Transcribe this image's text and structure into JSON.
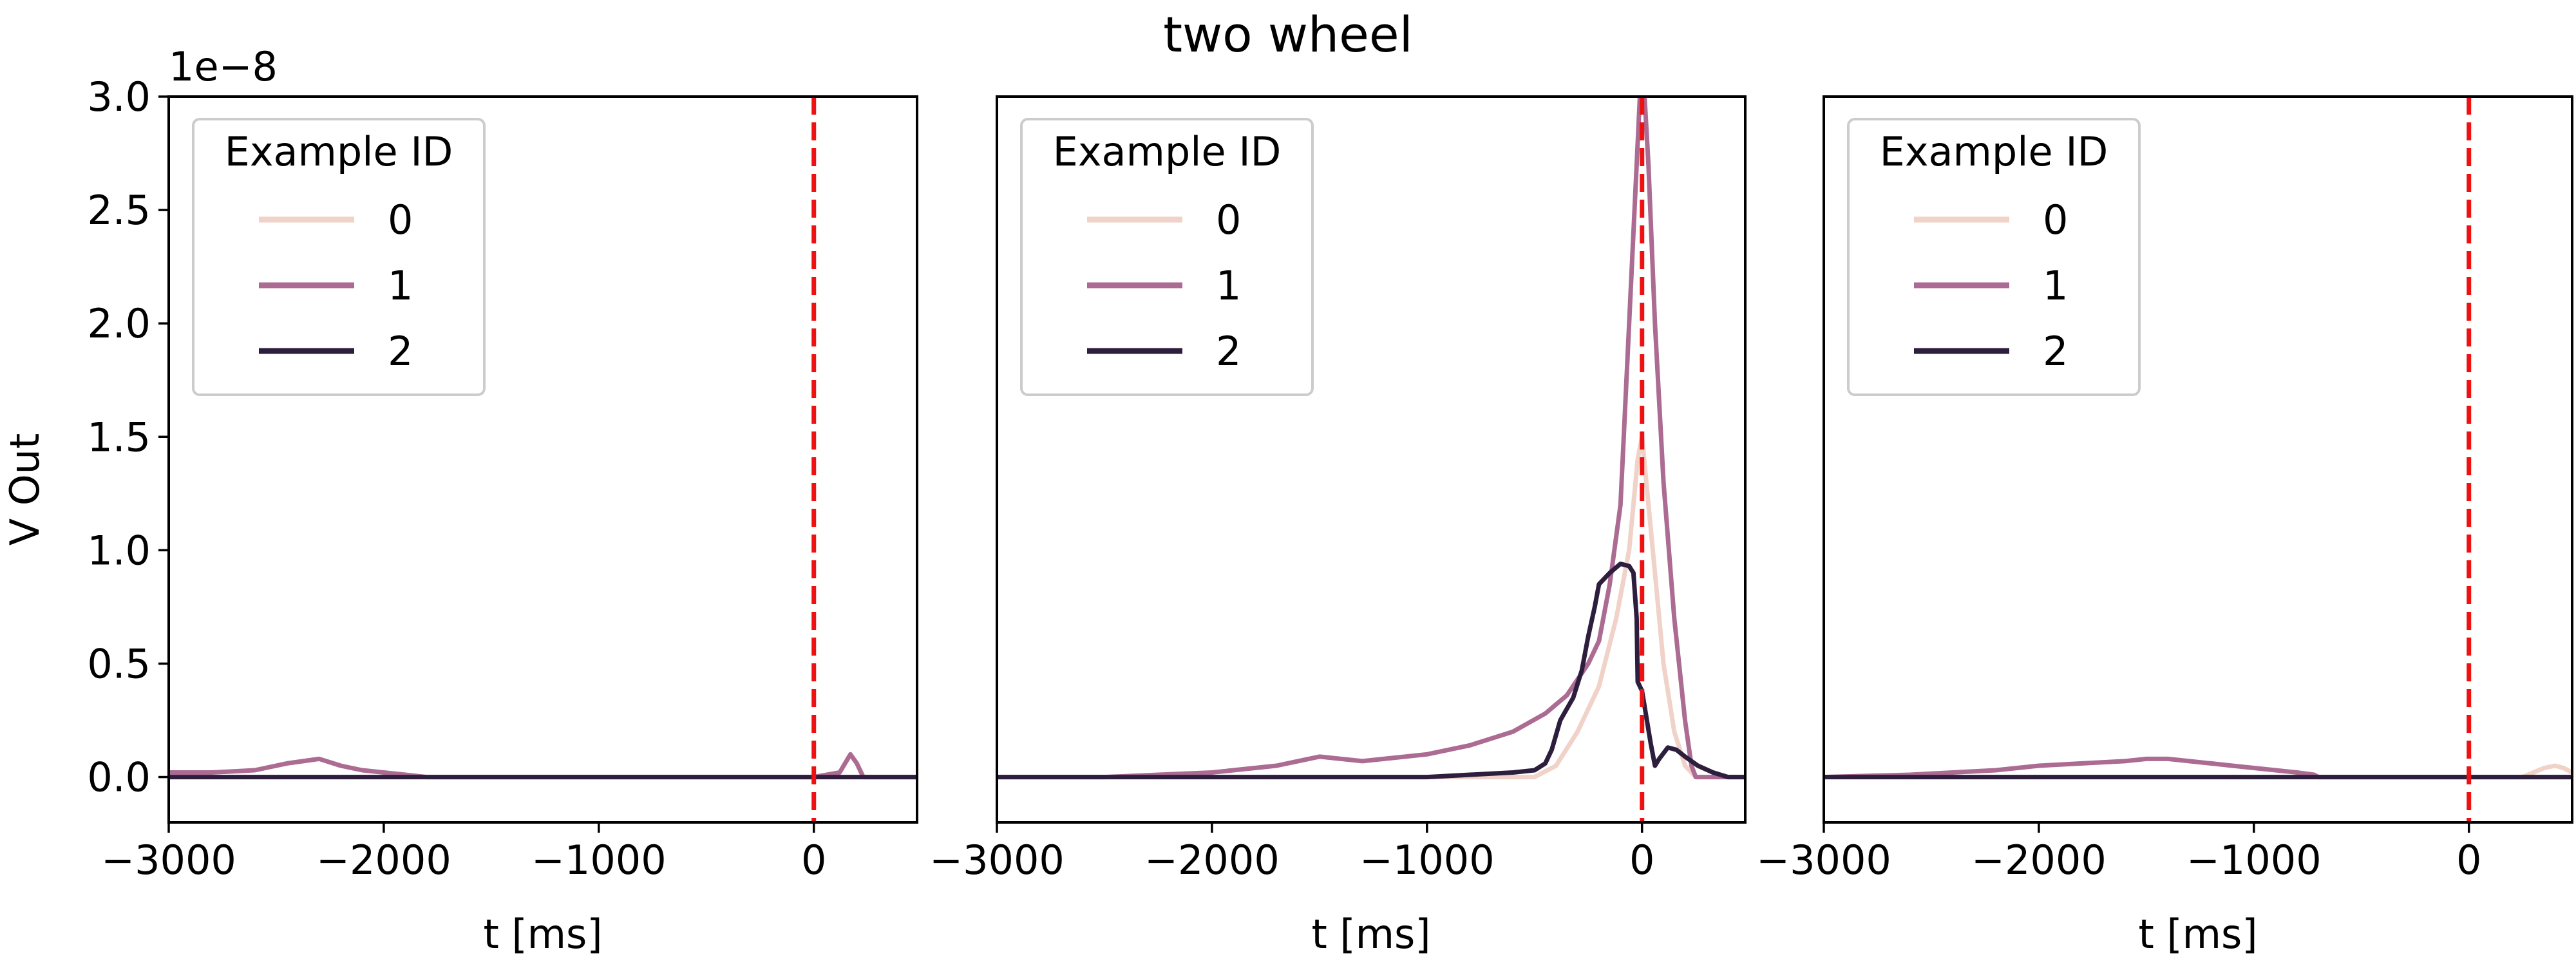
{
  "title": "two wheel",
  "y_label": "V Out",
  "y_offset_label": "1e−8",
  "x_label": "t [ms]",
  "x_ticks": [
    {
      "v": -3000,
      "label": "−3000"
    },
    {
      "v": -2000,
      "label": "−2000"
    },
    {
      "v": -1000,
      "label": "−1000"
    },
    {
      "v": 0,
      "label": "0"
    }
  ],
  "y_ticks": [
    {
      "v": 0.0,
      "label": "0.0"
    },
    {
      "v": 0.5,
      "label": "0.5"
    },
    {
      "v": 1.0,
      "label": "1.0"
    },
    {
      "v": 1.5,
      "label": "1.5"
    },
    {
      "v": 2.0,
      "label": "2.0"
    },
    {
      "v": 2.5,
      "label": "2.5"
    },
    {
      "v": 3.0,
      "label": "3.0"
    }
  ],
  "legend_title": "Example ID",
  "colors": {
    "0": "#f0d2c8",
    "1": "#ac6b92",
    "2": "#2d1e3e",
    "marker": "#ee1111"
  },
  "chart_data": [
    {
      "type": "line",
      "xlabel": "t [ms]",
      "ylabel": "V Out",
      "y_scale": "1e-8",
      "xlim": [
        -3000,
        480
      ],
      "ylim": [
        -0.2,
        3.0
      ],
      "vertical_marker_x": 0,
      "legend": {
        "title": "Example ID",
        "entries": [
          "0",
          "1",
          "2"
        ],
        "placement": "upper-left"
      },
      "series": [
        {
          "name": "0",
          "x": [
            -3000,
            480
          ],
          "y": [
            0.0,
            0.0
          ]
        },
        {
          "name": "1",
          "x": [
            -3000,
            -2800,
            -2600,
            -2450,
            -2300,
            -2200,
            -2100,
            -2000,
            -1900,
            -1800,
            -1500,
            -1000,
            0,
            120,
            170,
            200,
            230,
            480
          ],
          "y": [
            0.02,
            0.02,
            0.03,
            0.06,
            0.08,
            0.05,
            0.03,
            0.02,
            0.01,
            0.0,
            0.0,
            0.0,
            0.0,
            0.02,
            0.1,
            0.06,
            0.0,
            0.0
          ]
        },
        {
          "name": "2",
          "x": [
            -3000,
            480
          ],
          "y": [
            0.0,
            0.0
          ]
        }
      ]
    },
    {
      "type": "line",
      "xlabel": "t [ms]",
      "ylim": [
        -0.2,
        3.0
      ],
      "xlim": [
        -3000,
        480
      ],
      "vertical_marker_x": 0,
      "legend": {
        "title": "Example ID",
        "entries": [
          "0",
          "1",
          "2"
        ],
        "placement": "upper-left"
      },
      "series": [
        {
          "name": "0",
          "x": [
            -3000,
            -500,
            -400,
            -300,
            -200,
            -120,
            -60,
            -20,
            0,
            60,
            100,
            150,
            200,
            250,
            480
          ],
          "y": [
            0.0,
            0.0,
            0.05,
            0.2,
            0.4,
            0.7,
            1.0,
            1.4,
            1.5,
            0.9,
            0.5,
            0.2,
            0.05,
            0.0,
            0.0
          ]
        },
        {
          "name": "1",
          "x": [
            -3000,
            -2500,
            -2000,
            -1700,
            -1500,
            -1300,
            -1000,
            -800,
            -600,
            -450,
            -350,
            -300,
            -250,
            -200,
            -150,
            -100,
            -70,
            -40,
            -10,
            0,
            30,
            60,
            100,
            150,
            200,
            230,
            250,
            480
          ],
          "y": [
            0.0,
            0.0,
            0.02,
            0.05,
            0.09,
            0.07,
            0.1,
            0.14,
            0.2,
            0.28,
            0.36,
            0.43,
            0.5,
            0.6,
            0.85,
            1.2,
            1.8,
            2.4,
            3.0,
            3.2,
            2.7,
            2.0,
            1.3,
            0.7,
            0.25,
            0.05,
            0.0,
            0.0
          ]
        },
        {
          "name": "2",
          "x": [
            -3000,
            -1000,
            -600,
            -500,
            -450,
            -420,
            -380,
            -320,
            -280,
            -250,
            -220,
            -200,
            -150,
            -100,
            -60,
            -40,
            -25,
            -20,
            0,
            40,
            60,
            80,
            120,
            160,
            200,
            260,
            330,
            400,
            480
          ],
          "y": [
            0.0,
            0.0,
            0.02,
            0.03,
            0.06,
            0.12,
            0.25,
            0.35,
            0.47,
            0.62,
            0.75,
            0.85,
            0.9,
            0.94,
            0.93,
            0.9,
            0.7,
            0.42,
            0.38,
            0.15,
            0.05,
            0.08,
            0.13,
            0.12,
            0.09,
            0.05,
            0.02,
            0.0,
            0.0
          ]
        }
      ]
    },
    {
      "type": "line",
      "xlabel": "t [ms]",
      "ylim": [
        -0.2,
        3.0
      ],
      "xlim": [
        -3000,
        480
      ],
      "vertical_marker_x": 0,
      "legend": {
        "title": "Example ID",
        "entries": [
          "0",
          "1",
          "2"
        ],
        "placement": "upper-left"
      },
      "series": [
        {
          "name": "0",
          "x": [
            -3000,
            250,
            300,
            350,
            400,
            440,
            480
          ],
          "y": [
            0.0,
            0.0,
            0.02,
            0.04,
            0.05,
            0.04,
            0.02
          ]
        },
        {
          "name": "1",
          "x": [
            -3000,
            -2600,
            -2400,
            -2200,
            -2000,
            -1800,
            -1600,
            -1500,
            -1400,
            -1300,
            -1200,
            -1100,
            -1000,
            -900,
            -800,
            -720,
            -700,
            480
          ],
          "y": [
            0.0,
            0.01,
            0.02,
            0.03,
            0.05,
            0.06,
            0.07,
            0.08,
            0.08,
            0.07,
            0.06,
            0.05,
            0.04,
            0.03,
            0.02,
            0.01,
            0.0,
            0.0
          ]
        },
        {
          "name": "2",
          "x": [
            -3000,
            480
          ],
          "y": [
            0.0,
            0.0
          ]
        }
      ]
    }
  ]
}
